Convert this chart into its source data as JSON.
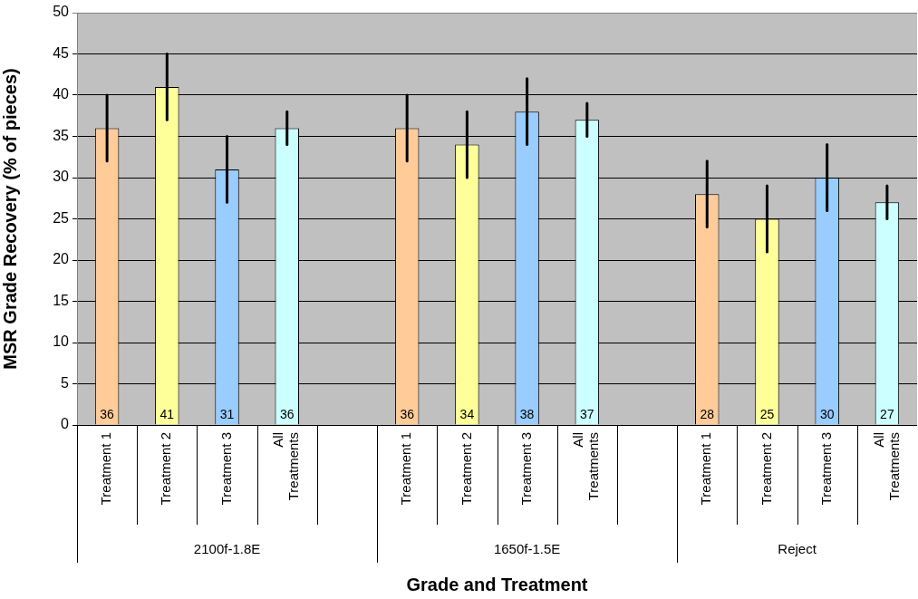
{
  "chart_data": {
    "type": "bar",
    "xlabel": "Grade and Treatment",
    "ylabel": "MSR Grade Recovery (% of pieces)",
    "categories": [
      "Treatment 1",
      "Treatment 2",
      "Treatment 3",
      "All Treatments",
      null,
      "Treatment 1",
      "Treatment 2",
      "Treatment 3",
      "All Treatments",
      null,
      "Treatment 1",
      "Treatment 2",
      "Treatment 3",
      "All Treatments"
    ],
    "values": [
      36,
      41,
      31,
      36,
      null,
      36,
      34,
      38,
      37,
      null,
      28,
      25,
      30,
      27
    ],
    "errors": [
      4,
      4,
      4,
      2,
      null,
      4,
      4,
      4,
      2,
      null,
      4,
      4,
      4,
      2
    ],
    "colors": [
      "#ffcc99",
      "#ffff99",
      "#99ccff",
      "#ccffff",
      null,
      "#ffcc99",
      "#ffff99",
      "#99ccff",
      "#ccffff",
      null,
      "#ffcc99",
      "#ffff99",
      "#99ccff",
      "#ccffff"
    ],
    "annotations": [
      "2100f-1.8E",
      "1650f-1.5E",
      "Reject"
    ],
    "ylim": [
      0,
      50
    ],
    "yticks": [
      0,
      5,
      10,
      15,
      20,
      25,
      30,
      35,
      40,
      45,
      50
    ],
    "grid": "y",
    "legend": false,
    "data_labels": true
  }
}
